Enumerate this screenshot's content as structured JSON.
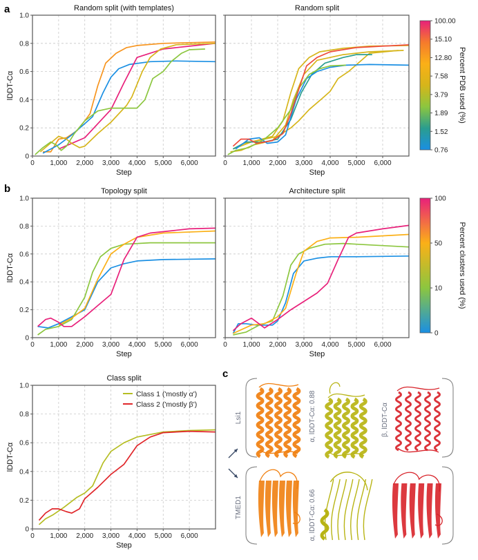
{
  "panel_labels": {
    "a": "a",
    "b": "b",
    "c": "c"
  },
  "chart_data": [
    {
      "type": "line",
      "panel": "a",
      "title": "Random split (with templates)",
      "xlabel": "Step",
      "ylabel": "lDDT-Cα",
      "xlim": [
        0,
        7000
      ],
      "ylim": [
        0,
        1.0
      ],
      "grid": true,
      "xticks": [
        0,
        1000,
        2000,
        3000,
        4000,
        5000,
        6000
      ],
      "xtick_labels": [
        "0",
        "1,000",
        "2,000",
        "3,000",
        "4,000",
        "5,000",
        "6,000"
      ],
      "yticks": [
        0,
        0.2,
        0.4,
        0.6,
        0.8,
        1.0
      ],
      "ytick_labels": [
        "0",
        "0.2",
        "0.4",
        "0.6",
        "0.8",
        "1.0"
      ],
      "series": [
        {
          "color": "#f7941d",
          "x": [
            400,
            700,
            1000,
            1300,
            1700,
            2000,
            2200,
            2500,
            2800,
            3200,
            3600,
            4000,
            5000,
            7000
          ],
          "y": [
            0.03,
            0.03,
            0.12,
            0.13,
            0.18,
            0.25,
            0.3,
            0.5,
            0.66,
            0.73,
            0.77,
            0.785,
            0.8,
            0.81
          ]
        },
        {
          "color": "#1a8fe3",
          "x": [
            400,
            1000,
            1500,
            2000,
            2300,
            2700,
            3000,
            3300,
            3700,
            4500,
            5500,
            7000
          ],
          "y": [
            0.02,
            0.08,
            0.15,
            0.23,
            0.28,
            0.45,
            0.56,
            0.62,
            0.65,
            0.67,
            0.675,
            0.67
          ]
        },
        {
          "color": "#e8207a",
          "x": [
            1000,
            2000,
            3000,
            3500,
            4000,
            4500,
            5000,
            6000,
            7000
          ],
          "y": [
            0.05,
            0.13,
            0.33,
            0.52,
            0.7,
            0.73,
            0.76,
            0.78,
            0.8
          ]
        },
        {
          "color": "#d6b51a",
          "x": [
            300,
            1000,
            1300,
            1500,
            1800,
            2000,
            2500,
            3000,
            3600,
            3800,
            4200,
            4500,
            4900,
            5500,
            7000
          ],
          "y": [
            0.03,
            0.14,
            0.12,
            0.09,
            0.06,
            0.07,
            0.16,
            0.24,
            0.36,
            0.42,
            0.6,
            0.7,
            0.76,
            0.79,
            0.8
          ]
        },
        {
          "color": "#8cc63f",
          "x": [
            100,
            400,
            700,
            900,
            1100,
            1300,
            1600,
            2000,
            2500,
            3000,
            3500,
            4000,
            4300,
            4600,
            5000,
            5300,
            5700,
            6000,
            6600
          ],
          "y": [
            0.01,
            0.06,
            0.1,
            0.08,
            0.04,
            0.07,
            0.16,
            0.25,
            0.32,
            0.34,
            0.34,
            0.34,
            0.4,
            0.55,
            0.6,
            0.67,
            0.73,
            0.755,
            0.76
          ]
        }
      ]
    },
    {
      "type": "line",
      "panel": "a",
      "title": "Random split",
      "xlabel": "Step",
      "ylabel": "",
      "xlim": [
        0,
        7000
      ],
      "ylim": [
        0,
        1.0
      ],
      "grid": true,
      "xticks": [
        0,
        1000,
        2000,
        3000,
        4000,
        5000,
        6000
      ],
      "xtick_labels": [
        "0",
        "1,000",
        "2,000",
        "3,000",
        "4,000",
        "5,000",
        "6,000"
      ],
      "yticks": [
        0,
        0.2,
        0.4,
        0.6,
        0.8,
        1.0
      ],
      "ytick_labels": [],
      "series": [
        {
          "color": "#d6b51a",
          "x": [
            300,
            700,
            1200,
            1800,
            2200,
            2500,
            2800,
            3200,
            3600,
            4500,
            5500,
            7000
          ],
          "y": [
            0.05,
            0.09,
            0.11,
            0.14,
            0.25,
            0.45,
            0.62,
            0.7,
            0.74,
            0.765,
            0.78,
            0.785
          ]
        },
        {
          "color": "#d6b51a",
          "x": [
            200,
            600,
            1100,
            1800,
            2300,
            2600,
            3000,
            3500,
            4500,
            5500,
            6800
          ],
          "y": [
            0.03,
            0.04,
            0.08,
            0.11,
            0.22,
            0.4,
            0.58,
            0.68,
            0.72,
            0.74,
            0.75
          ]
        },
        {
          "color": "#d6b51a",
          "x": [
            300,
            1000,
            2000,
            2500,
            2800,
            3200,
            3700,
            4000,
            4300,
            4700,
            5500,
            6600
          ],
          "y": [
            0.05,
            0.1,
            0.14,
            0.2,
            0.25,
            0.33,
            0.41,
            0.46,
            0.55,
            0.6,
            0.73,
            0.75
          ]
        },
        {
          "color": "#2a9d8f",
          "x": [
            300,
            800,
            1500,
            2000,
            2500,
            2900,
            3300,
            3800,
            4500,
            5000,
            5600
          ],
          "y": [
            0.05,
            0.1,
            0.1,
            0.12,
            0.26,
            0.45,
            0.58,
            0.66,
            0.7,
            0.72,
            0.72
          ]
        },
        {
          "color": "#1a8fe3",
          "x": [
            400,
            900,
            1300,
            1600,
            2000,
            2300,
            2700,
            3100,
            3500,
            4000,
            4600,
            5500,
            7000
          ],
          "y": [
            0.05,
            0.12,
            0.13,
            0.09,
            0.1,
            0.15,
            0.4,
            0.55,
            0.6,
            0.63,
            0.645,
            0.65,
            0.645
          ]
        },
        {
          "color": "#8cc63f",
          "x": [
            100,
            400,
            900,
            1500,
            2000,
            2500,
            2800,
            3200,
            3600,
            4000,
            4600
          ],
          "y": [
            0.01,
            0.04,
            0.06,
            0.12,
            0.2,
            0.33,
            0.48,
            0.58,
            0.62,
            0.64,
            0.645
          ]
        },
        {
          "color": "#ee4a3c",
          "x": [
            300,
            600,
            900,
            1200,
            1800,
            2200,
            2500,
            2800,
            3100,
            3500,
            4000,
            5000,
            7000
          ],
          "y": [
            0.07,
            0.12,
            0.12,
            0.09,
            0.11,
            0.16,
            0.3,
            0.47,
            0.64,
            0.7,
            0.74,
            0.77,
            0.79
          ]
        }
      ]
    },
    {
      "type": "line",
      "panel": "b",
      "title": "Topology split",
      "xlabel": "Step",
      "ylabel": "lDDT-Cα",
      "xlim": [
        0,
        7000
      ],
      "ylim": [
        0,
        1.0
      ],
      "grid": true,
      "xticks": [
        0,
        1000,
        2000,
        3000,
        4000,
        5000,
        6000
      ],
      "xtick_labels": [
        "0",
        "1,000",
        "2,000",
        "3,000",
        "4,000",
        "5,000",
        "6,000"
      ],
      "yticks": [
        0,
        0.2,
        0.4,
        0.6,
        0.8,
        1.0
      ],
      "ytick_labels": [
        "0",
        "0.2",
        "0.4",
        "0.6",
        "0.8",
        "1.0"
      ],
      "series": [
        {
          "color": "#1a8fe3",
          "x": [
            200,
            600,
            1000,
            1500,
            2000,
            2500,
            3000,
            3500,
            4000,
            5000,
            7000
          ],
          "y": [
            0.08,
            0.07,
            0.1,
            0.15,
            0.2,
            0.4,
            0.5,
            0.53,
            0.55,
            0.56,
            0.565
          ]
        },
        {
          "color": "#8cc63f",
          "x": [
            200,
            500,
            1000,
            1500,
            2000,
            2300,
            2600,
            3000,
            3500,
            4500,
            7000
          ],
          "y": [
            0.02,
            0.06,
            0.08,
            0.13,
            0.29,
            0.47,
            0.58,
            0.64,
            0.67,
            0.68,
            0.68
          ]
        },
        {
          "color": "#fbb017",
          "x": [
            1000,
            1500,
            2000,
            2500,
            3000,
            3500,
            4000,
            5000,
            7000
          ],
          "y": [
            0.09,
            0.14,
            0.21,
            0.42,
            0.6,
            0.67,
            0.72,
            0.75,
            0.765
          ]
        },
        {
          "color": "#e8207a",
          "x": [
            200,
            500,
            700,
            1000,
            1200,
            1500,
            2000,
            2500,
            3000,
            3500,
            4000,
            4500,
            5000,
            6000,
            7000
          ],
          "y": [
            0.08,
            0.13,
            0.14,
            0.11,
            0.08,
            0.08,
            0.15,
            0.23,
            0.31,
            0.56,
            0.72,
            0.75,
            0.76,
            0.78,
            0.785
          ]
        }
      ]
    },
    {
      "type": "line",
      "panel": "b",
      "title": "Architecture split",
      "xlabel": "Step",
      "ylabel": "",
      "xlim": [
        0,
        7000
      ],
      "ylim": [
        0,
        1.0
      ],
      "grid": true,
      "xticks": [
        0,
        1000,
        2000,
        3000,
        4000,
        5000,
        6000
      ],
      "xtick_labels": [
        "0",
        "1,000",
        "2,000",
        "3,000",
        "4,000",
        "5,000",
        "6,000"
      ],
      "yticks": [
        0,
        0.2,
        0.4,
        0.6,
        0.8,
        1.0
      ],
      "ytick_labels": [],
      "series": [
        {
          "color": "#1a8fe3",
          "x": [
            300,
            500,
            800,
            1200,
            1800,
            2000,
            2300,
            2600,
            3000,
            3500,
            4000,
            5000,
            7000
          ],
          "y": [
            0.03,
            0.1,
            0.1,
            0.09,
            0.09,
            0.12,
            0.25,
            0.46,
            0.55,
            0.57,
            0.58,
            0.58,
            0.585
          ]
        },
        {
          "color": "#8cc63f",
          "x": [
            300,
            800,
            1300,
            1800,
            2200,
            2500,
            2800,
            3200,
            3800,
            4500,
            5500,
            7000
          ],
          "y": [
            0.02,
            0.04,
            0.09,
            0.12,
            0.3,
            0.52,
            0.6,
            0.64,
            0.67,
            0.675,
            0.665,
            0.65
          ]
        },
        {
          "color": "#fbb017",
          "x": [
            300,
            1000,
            1500,
            2000,
            2300,
            2700,
            3000,
            3500,
            4000,
            5000,
            7000
          ],
          "y": [
            0.03,
            0.09,
            0.1,
            0.15,
            0.21,
            0.46,
            0.62,
            0.69,
            0.715,
            0.72,
            0.74
          ]
        },
        {
          "color": "#e8207a",
          "x": [
            300,
            600,
            1000,
            1500,
            2000,
            2500,
            3000,
            3500,
            3900,
            4300,
            4700,
            5000,
            6000,
            7000
          ],
          "y": [
            0.05,
            0.1,
            0.14,
            0.07,
            0.13,
            0.2,
            0.26,
            0.32,
            0.39,
            0.56,
            0.72,
            0.75,
            0.78,
            0.805
          ]
        }
      ]
    },
    {
      "type": "line",
      "panel": "class",
      "title": "Class split",
      "xlabel": "Step",
      "ylabel": "lDDT-Cα",
      "xlim": [
        0,
        7000
      ],
      "ylim": [
        0,
        1.0
      ],
      "grid": true,
      "legend": "top-right",
      "xticks": [
        0,
        1000,
        2000,
        3000,
        4000,
        5000,
        6000
      ],
      "xtick_labels": [
        "0",
        "1,000",
        "2,000",
        "3,000",
        "4,000",
        "5,000",
        "6,000"
      ],
      "yticks": [
        0,
        0.2,
        0.4,
        0.6,
        0.8,
        1.0
      ],
      "ytick_labels": [
        "0",
        "0.2",
        "0.4",
        "0.6",
        "0.8",
        "1.0"
      ],
      "series": [
        {
          "name": "Class 1 ('mostly α')",
          "color": "#b5bd22",
          "x": [
            250,
            500,
            800,
            1200,
            1700,
            2000,
            2300,
            2700,
            3000,
            3500,
            4000,
            5000,
            6000,
            7000
          ],
          "y": [
            0.03,
            0.07,
            0.1,
            0.15,
            0.22,
            0.25,
            0.3,
            0.46,
            0.54,
            0.6,
            0.64,
            0.675,
            0.685,
            0.69
          ]
        },
        {
          "name": "Class 2 ('mostly β')",
          "color": "#e0262a",
          "x": [
            250,
            500,
            750,
            1000,
            1300,
            1500,
            1800,
            2000,
            2500,
            3000,
            3500,
            4000,
            4500,
            5000,
            6000,
            7000
          ],
          "y": [
            0.06,
            0.11,
            0.14,
            0.14,
            0.12,
            0.11,
            0.14,
            0.21,
            0.29,
            0.38,
            0.45,
            0.58,
            0.64,
            0.67,
            0.68,
            0.675
          ]
        }
      ]
    }
  ],
  "colorbars": [
    {
      "label": "Percent PDB used (%)",
      "ticks": [
        "0.76",
        "1.52",
        "1.89",
        "3.79",
        "7.58",
        "12.80",
        "15.10",
        "100.00"
      ],
      "colors": [
        "#1a8fe3",
        "#2a9d8f",
        "#8cc63f",
        "#d6b51a",
        "#fbb017",
        "#f57a2c",
        "#e8207a"
      ]
    },
    {
      "label": "Percent clusters used (%)",
      "ticks": [
        "0",
        "10",
        "50",
        "100"
      ],
      "colors": [
        "#1a8fe3",
        "#8cc63f",
        "#fbb017",
        "#e8207a"
      ]
    }
  ],
  "panel_c": {
    "rows": [
      {
        "protein": "Lsi1",
        "alpha_label": "α, lDDT-Cα: 0.88",
        "beta_label": "β, lDDT-Cα"
      },
      {
        "protein": "TMED1",
        "alpha_label": "α, lDDT-Cα: 0.66",
        "beta_label": ""
      }
    ],
    "colors": {
      "reference": "#f07f0f",
      "alpha_model": "#b8b414",
      "beta_model": "#d8232a",
      "arrow": "#3a4a66"
    }
  }
}
